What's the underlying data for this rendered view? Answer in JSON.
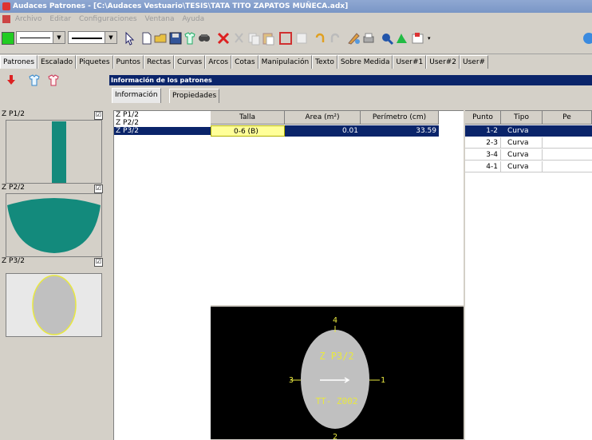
{
  "window": {
    "title": "Audaces Patrones - [C:\\Audaces Vestuario\\TESIS\\TATA TITO ZAPATOS MUÑECA.adx]"
  },
  "menu": [
    "Archivo",
    "Editar",
    "Configuraciones",
    "Ventana",
    "Ayuda"
  ],
  "toolbar": {
    "icons": [
      "color-icon",
      "line-style-combo",
      "line-width-combo",
      "pointer-icon",
      "new-icon",
      "open-icon",
      "save-icon",
      "garment-icon",
      "find-icon",
      "delete-icon",
      "cut-icon",
      "copy-icon",
      "paste-icon",
      "frame-icon",
      "grid-icon",
      "undo-icon",
      "redo-icon",
      "palette-icon",
      "print-icon",
      "zoom-icon",
      "measure-icon",
      "export-icon",
      "globe-icon"
    ],
    "accent": "#22cc22"
  },
  "main_tabs": [
    "Patrones",
    "Escalado",
    "Piquetes",
    "Puntos",
    "Rectas",
    "Curvas",
    "Arcos",
    "Cotas",
    "Manipulación",
    "Texto",
    "Sobre Medida",
    "User#1",
    "User#2",
    "User#"
  ],
  "active_main_tab": "Patrones",
  "patterns_panel": {
    "items": [
      {
        "label": "Z P1/2",
        "checked": "☑",
        "shape": "rectangle",
        "fill": "#138a7c"
      },
      {
        "label": "Z P2/2",
        "checked": "☑",
        "shape": "cup",
        "fill": "#138a7c"
      },
      {
        "label": "Z P3/2",
        "checked": "☑",
        "shape": "oval",
        "fill": "#c0c0c0"
      }
    ]
  },
  "info_panel": {
    "header": "Información de los patrones",
    "tabs": [
      "Información",
      "Propiedades"
    ],
    "active_tab": "Información"
  },
  "pattern_list": {
    "items": [
      "Z P1/2",
      "Z P2/2",
      "Z P3/2"
    ],
    "selected_index": 2
  },
  "size_grid": {
    "columns": [
      "Talla",
      "Area (m²)",
      "Perímetro (cm)"
    ],
    "rows": [
      {
        "talla": "0-6 (B)",
        "area": "0.01",
        "perimetro": "33.59"
      }
    ]
  },
  "point_grid": {
    "columns": [
      "Punto",
      "Tipo",
      "Pe"
    ],
    "rows": [
      {
        "punto": "1-2",
        "tipo": "Curva"
      },
      {
        "punto": "2-3",
        "tipo": "Curva"
      },
      {
        "punto": "3-4",
        "tipo": "Curva"
      },
      {
        "punto": "4-1",
        "tipo": "Curva"
      }
    ]
  },
  "preview": {
    "name": "Z P3/2",
    "code": "TT- Z002",
    "point_labels": [
      "4",
      "3",
      "1",
      "2"
    ],
    "shape_fill": "#c0c0c0",
    "line_color": "#e8e840"
  }
}
